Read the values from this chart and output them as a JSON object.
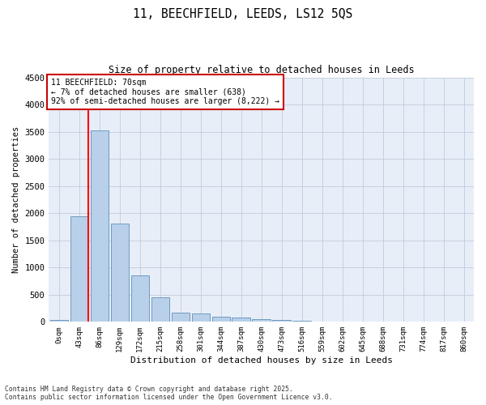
{
  "title_line1": "11, BEECHFIELD, LEEDS, LS12 5QS",
  "title_line2": "Size of property relative to detached houses in Leeds",
  "xlabel": "Distribution of detached houses by size in Leeds",
  "ylabel": "Number of detached properties",
  "bar_labels": [
    "0sqm",
    "43sqm",
    "86sqm",
    "129sqm",
    "172sqm",
    "215sqm",
    "258sqm",
    "301sqm",
    "344sqm",
    "387sqm",
    "430sqm",
    "473sqm",
    "516sqm",
    "559sqm",
    "602sqm",
    "645sqm",
    "688sqm",
    "731sqm",
    "774sqm",
    "817sqm",
    "860sqm"
  ],
  "bar_values": [
    30,
    1950,
    3530,
    1810,
    860,
    450,
    170,
    160,
    90,
    75,
    50,
    35,
    20,
    10,
    5,
    3,
    2,
    1,
    1,
    0,
    0
  ],
  "bar_color": "#b8d0ea",
  "bar_edge_color": "#6090b8",
  "ylim_max": 4500,
  "yticks": [
    0,
    500,
    1000,
    1500,
    2000,
    2500,
    3000,
    3500,
    4000,
    4500
  ],
  "red_line_bar_idx": 1,
  "annotation_text": "11 BEECHFIELD: 70sqm\n← 7% of detached houses are smaller (638)\n92% of semi-detached houses are larger (8,222) →",
  "annotation_box_facecolor": "#ffffff",
  "annotation_box_edgecolor": "#cc0000",
  "bg_color": "#e8eef8",
  "grid_color": "#c0ccdc",
  "footer": "Contains HM Land Registry data © Crown copyright and database right 2025.\nContains public sector information licensed under the Open Government Licence v3.0."
}
